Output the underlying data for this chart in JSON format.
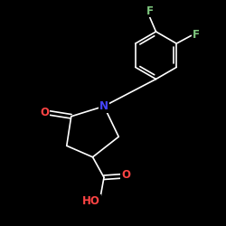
{
  "background_color": "#000000",
  "bond_color": "#ffffff",
  "atom_colors": {
    "F": "#7fc97f",
    "N": "#4444ff",
    "O": "#ff4444",
    "C": "#ffffff"
  },
  "font_size": 8.5,
  "lw": 1.2
}
